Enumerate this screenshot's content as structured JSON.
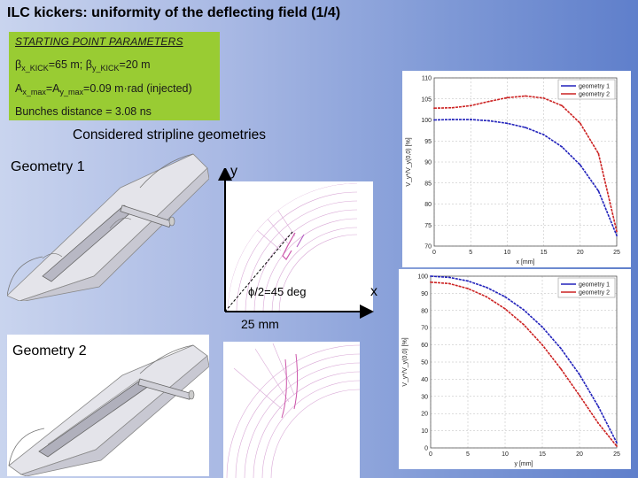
{
  "page": {
    "title": "ILC kickers: uniformity of the deflecting field (1/4)",
    "considered": "Considered stripline geometries"
  },
  "params": {
    "header": "STARTING POINT PARAMETERS",
    "beta_line": {
      "b1": "β",
      "s1": "x_KICK",
      "v1": "=65 m;  ",
      "b2": "β",
      "s2": "y_KICK",
      "v2": "=20 m"
    },
    "a_line": {
      "a1": "A",
      "s1": "x_max",
      "mid": "=A",
      "s2": "y_max",
      "rest": "=0.09 m·rad (injected)"
    },
    "bunch": "Bunches distance = 3.08 ns"
  },
  "geometry": {
    "geo1_label": "Geometry 1",
    "geo2_label": "Geometry 2",
    "y_label": "y",
    "x_label": "x",
    "phi_label": "ϕ/2=45 deg",
    "mm_label": "25 mm"
  },
  "colors": {
    "param_bg": "#99cc33",
    "geometry1": "#2222bb",
    "geometry2": "#cc2222",
    "field_lines": "#d9a8d6"
  },
  "chart_data": [
    {
      "type": "line",
      "title": "",
      "xlabel": "x [mm]",
      "ylabel": "V_y*/V_y(0,0) [%]",
      "xlim": [
        0,
        25
      ],
      "ylim": [
        70,
        110
      ],
      "x_ticks": [
        "0",
        "5",
        "10",
        "15",
        "20",
        "25"
      ],
      "y_ticks": [
        "70",
        "75",
        "80",
        "85",
        "90",
        "95",
        "100",
        "105",
        "110"
      ],
      "grid": true,
      "legend": "top-right",
      "x": [
        0,
        2.5,
        5,
        7.5,
        10,
        12.5,
        15,
        17.5,
        20,
        22.5,
        25
      ],
      "series": [
        {
          "name": "geometry 1",
          "values": [
            100,
            100.1,
            100.1,
            99.8,
            99.2,
            98.2,
            96.5,
            93.6,
            89.3,
            83.1,
            72.5
          ]
        },
        {
          "name": "geometry 2",
          "values": [
            102.8,
            102.9,
            103.4,
            104.4,
            105.3,
            105.7,
            105.2,
            103.4,
            99.2,
            92.0,
            73.5
          ]
        }
      ]
    },
    {
      "type": "line",
      "title": "",
      "xlabel": "y [mm]",
      "ylabel": "V_y*/V_y(0,0) [%]",
      "xlim": [
        0,
        25
      ],
      "ylim": [
        0,
        100
      ],
      "x_ticks": [
        "0",
        "5",
        "10",
        "15",
        "20",
        "25"
      ],
      "y_ticks": [
        "0",
        "10",
        "20",
        "30",
        "40",
        "50",
        "60",
        "70",
        "80",
        "90",
        "100"
      ],
      "grid": true,
      "legend": "top-right",
      "x": [
        0,
        2.5,
        5,
        7.5,
        10,
        12.5,
        15,
        17.5,
        20,
        22.5,
        25
      ],
      "series": [
        {
          "name": "geometry 1",
          "values": [
            100,
            99.3,
            97.2,
            93.5,
            88.0,
            80.4,
            70.4,
            57.9,
            42.7,
            24.3,
            3
          ]
        },
        {
          "name": "geometry 2",
          "values": [
            96.5,
            95.7,
            92.8,
            88.0,
            81.0,
            71.8,
            60.0,
            46.0,
            30.5,
            14.5,
            1
          ]
        }
      ]
    }
  ]
}
